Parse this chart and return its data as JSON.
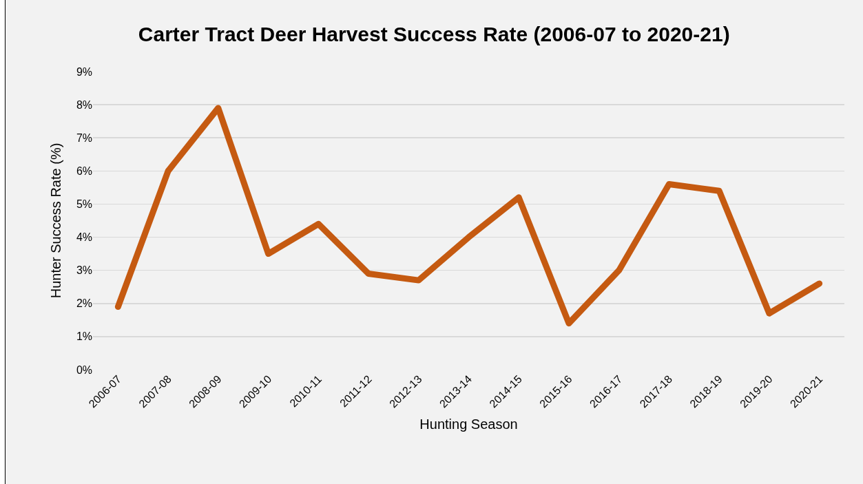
{
  "chart_data": {
    "type": "line",
    "title": "Carter Tract Deer Harvest Success Rate (2006-07 to 2020-21)",
    "xlabel": "Hunting Season",
    "ylabel": "Hunter Success Rate (%)",
    "categories": [
      "2006-07",
      "2007-08",
      "2008-09",
      "2009-10",
      "2010-11",
      "2011-12",
      "2012-13",
      "2013-14",
      "2014-15",
      "2015-16",
      "2016-17",
      "2017-18",
      "2018-19",
      "2019-20",
      "2020-21"
    ],
    "values": [
      1.9,
      6.0,
      7.9,
      3.5,
      4.4,
      2.9,
      2.7,
      4.0,
      5.2,
      1.4,
      3.0,
      5.6,
      5.4,
      1.7,
      2.6
    ],
    "color": "#c55a11",
    "line_style": "solid",
    "ylim": [
      0,
      9
    ],
    "yticks": [
      {
        "value": 0,
        "label": "0%"
      },
      {
        "value": 1,
        "label": "1%"
      },
      {
        "value": 2,
        "label": "2%"
      },
      {
        "value": 3,
        "label": "3%"
      },
      {
        "value": 4,
        "label": "4%"
      },
      {
        "value": 5,
        "label": "5%"
      },
      {
        "value": 6,
        "label": "6%"
      },
      {
        "value": 7,
        "label": "7%"
      },
      {
        "value": 8,
        "label": "8%"
      },
      {
        "value": 9,
        "label": "9%"
      }
    ],
    "grid": "y"
  }
}
